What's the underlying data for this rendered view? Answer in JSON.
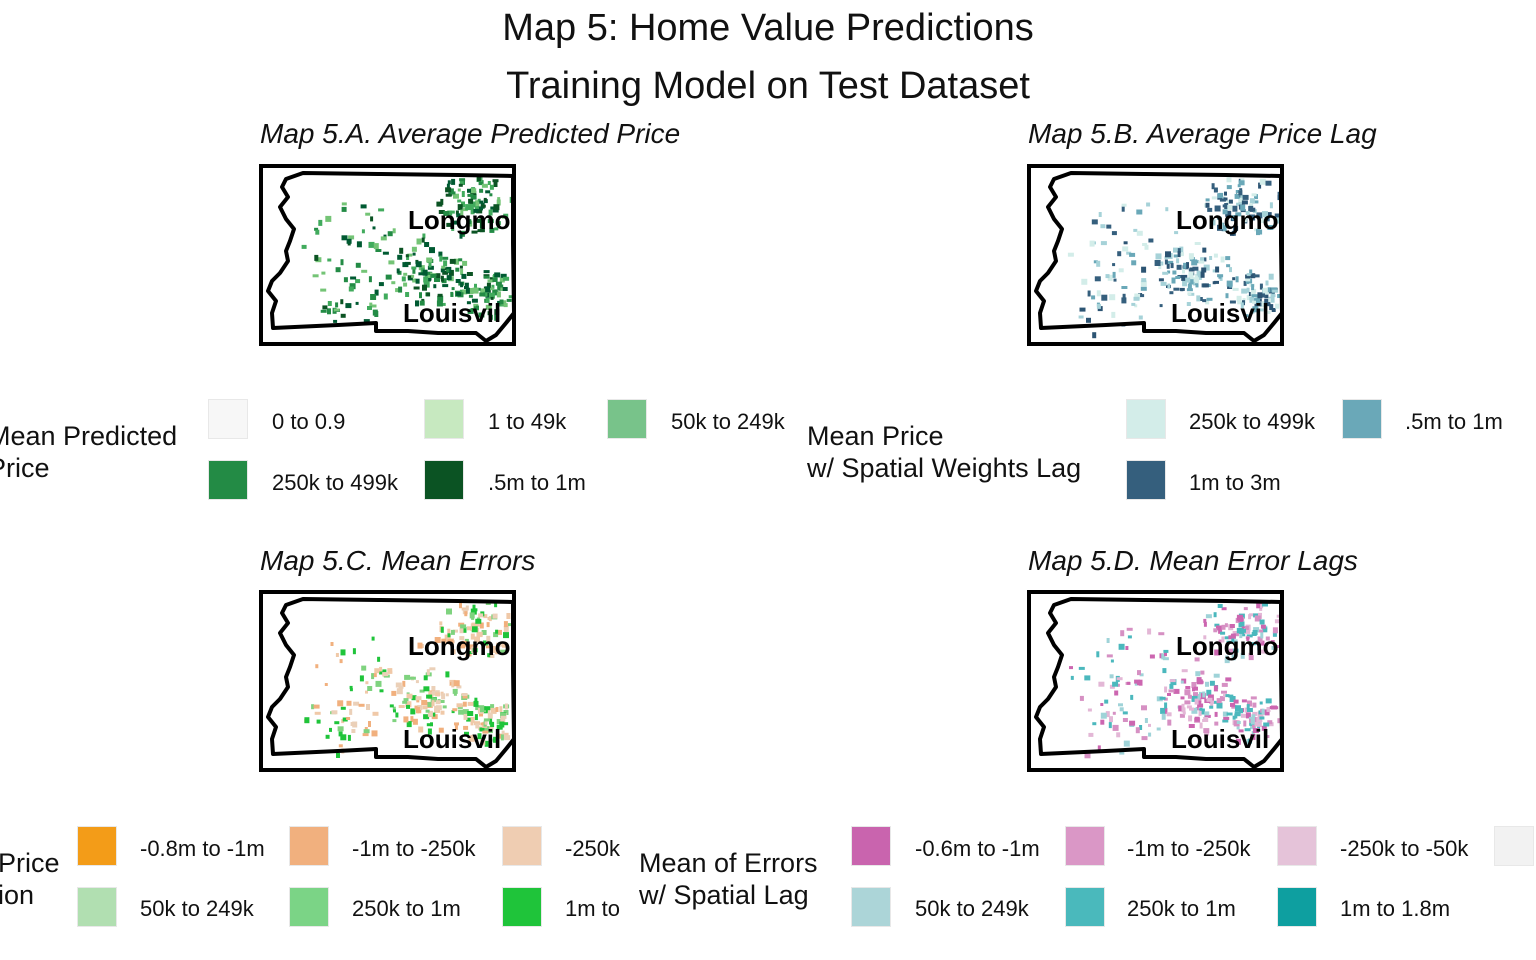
{
  "title": "Map 5: Home Value Predictions",
  "subtitle": "Training Model on Test Dataset",
  "panels": [
    {
      "id": "A",
      "title": "Map 5.A. Average Predicted Price",
      "cities": [
        "Longmo",
        "Louisvil"
      ],
      "palette": [
        "#238b45",
        "#0b5323",
        "#41ab5d",
        "#74c476",
        "#005a32"
      ]
    },
    {
      "id": "B",
      "title": "Map 5.B. Average Price Lag",
      "cities": [
        "Longmo",
        "Louisvil"
      ],
      "palette": [
        "#d3ede9",
        "#6aa8b8",
        "#355f7d",
        "#a6d2d8",
        "#2c5473"
      ]
    },
    {
      "id": "C",
      "title": "Map 5.C. Mean Errors",
      "cities": [
        "Longmo",
        "Louisvil"
      ],
      "palette": [
        "#f0c9a8",
        "#f1b07e",
        "#ebd0b8",
        "#7fd37f",
        "#1fc43a"
      ]
    },
    {
      "id": "D",
      "title": "Map 5.D. Mean Error Lags",
      "cities": [
        "Longmo",
        "Louisvil"
      ],
      "palette": [
        "#e3b7d6",
        "#d690c3",
        "#cc66b0",
        "#4bb8bd",
        "#9fd3d8"
      ]
    }
  ],
  "legends": {
    "a": {
      "title": "Mean Predicted\nPrice",
      "items": [
        {
          "label": "0 to 0.9",
          "color": "#f7f7f7"
        },
        {
          "label": "1 to 49k",
          "color": "#c7e9c0"
        },
        {
          "label": "50k to 249k",
          "color": "#78c38a"
        },
        {
          "label": "250k to 499k",
          "color": "#238b45"
        },
        {
          "label": ".5m to 1m",
          "color": "#0b5323"
        }
      ]
    },
    "b": {
      "title": "Mean Price\nw/ Spatial Weights Lag",
      "items": [
        {
          "label": "250k to 499k",
          "color": "#d3ede9"
        },
        {
          "label": ".5m to 1m",
          "color": "#6aa8b8"
        },
        {
          "label": "1m to 3m",
          "color": "#355f7d"
        }
      ]
    },
    "c": {
      "title": "Price\nion",
      "items": [
        {
          "label": "-0.8m to -1m",
          "color": "#f39c18"
        },
        {
          "label": "-1m to -250k",
          "color": "#f1b07e"
        },
        {
          "label": "-250k",
          "color": "#efcdb2"
        },
        {
          "label": "50k to 249k",
          "color": "#b1dfb1"
        },
        {
          "label": "250k to 1m",
          "color": "#7bd486"
        },
        {
          "label": "1m to",
          "color": "#1fc43a"
        }
      ]
    },
    "d": {
      "title": "Mean of Errors\nw/ Spatial Lag",
      "items": [
        {
          "label": "-0.6m to -1m",
          "color": "#c964ae"
        },
        {
          "label": "-1m to -250k",
          "color": "#da97c6"
        },
        {
          "label": "-250k to -50k",
          "color": "#e5c3d9"
        },
        {
          "label": "",
          "color": "#f2f2f2"
        },
        {
          "label": "50k to 249k",
          "color": "#acd5d8"
        },
        {
          "label": "250k to 1m",
          "color": "#4ab9bc"
        },
        {
          "label": "1m to 1.8m",
          "color": "#0e9fa0"
        }
      ]
    }
  }
}
